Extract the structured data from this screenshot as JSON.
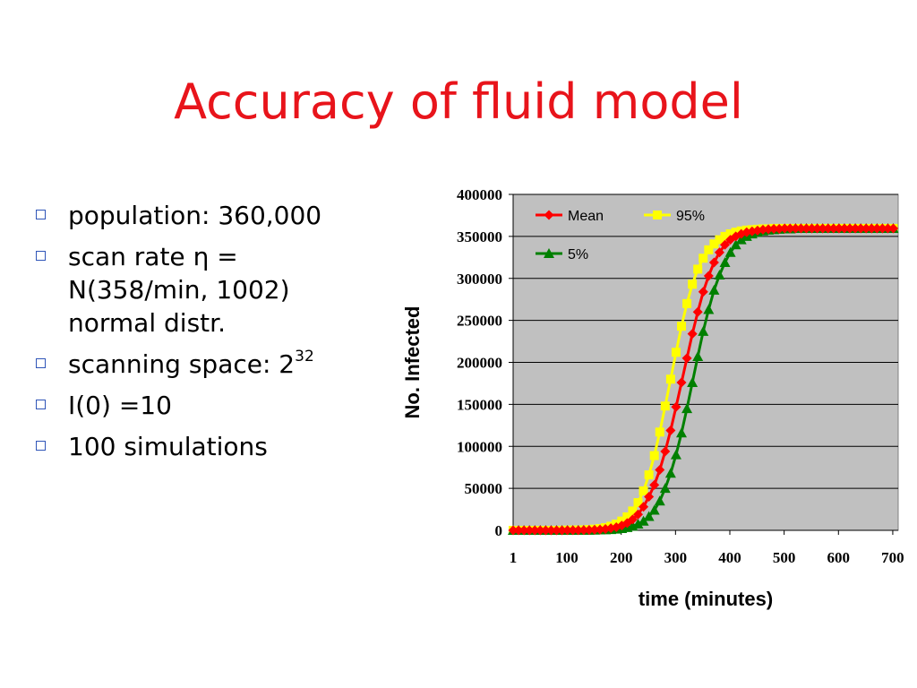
{
  "slide": {
    "title": "Accuracy of fluid model",
    "bullets": [
      {
        "text": "population: 360,000",
        "sup": ""
      },
      {
        "text": "scan rate η = N(358/min, 1002) normal distr.",
        "sup": ""
      },
      {
        "text": "scanning space: 2",
        "sup": "32"
      },
      {
        "text": "I(0) =10",
        "sup": ""
      },
      {
        "text": "100 simulations",
        "sup": ""
      }
    ]
  },
  "chart_data": {
    "type": "line",
    "xlabel": "time (minutes)",
    "ylabel": "No. Infected",
    "xlim": [
      1,
      710
    ],
    "ylim": [
      0,
      400000
    ],
    "x_ticks": [
      1,
      100,
      200,
      300,
      400,
      500,
      600,
      700
    ],
    "x_tick_labels": [
      "1",
      "100",
      "200",
      "300",
      "400",
      "500",
      "600",
      "700"
    ],
    "y_ticks": [
      0,
      50000,
      100000,
      150000,
      200000,
      250000,
      300000,
      350000,
      400000
    ],
    "y_tick_labels": [
      "0",
      "50000",
      "100000",
      "150000",
      "200000",
      "250000",
      "300000",
      "350000",
      "400000"
    ],
    "grid": true,
    "legend_position": "top-left inside",
    "colors": {
      "plot_background": "#c0c0c0",
      "gridline": "#000000"
    },
    "series": [
      {
        "name": "Mean",
        "color": "#ff0000",
        "marker": "diamond",
        "x": [
          1,
          11,
          21,
          31,
          41,
          51,
          61,
          71,
          81,
          91,
          101,
          111,
          121,
          131,
          141,
          151,
          161,
          171,
          181,
          191,
          201,
          211,
          221,
          231,
          241,
          251,
          261,
          271,
          281,
          291,
          301,
          311,
          321,
          331,
          341,
          351,
          361,
          371,
          381,
          391,
          401,
          411,
          421,
          431,
          441,
          451,
          461,
          471,
          481,
          491,
          501,
          511,
          521,
          531,
          541,
          551,
          561,
          571,
          581,
          591,
          601,
          611,
          621,
          631,
          641,
          651,
          661,
          671,
          681,
          691,
          701
        ],
        "y": [
          0,
          0,
          0,
          0,
          0,
          0,
          0,
          0,
          0,
          0,
          100,
          100,
          200,
          300,
          400,
          700,
          1000,
          1600,
          2500,
          3800,
          5700,
          8700,
          13000,
          19000,
          28000,
          40000,
          54000,
          72000,
          94000,
          119000,
          147000,
          176000,
          205000,
          234000,
          260000,
          284000,
          303000,
          319000,
          331000,
          340000,
          346000,
          350000,
          353000,
          355000,
          356000,
          357000,
          358000,
          358500,
          359000,
          359000,
          359500,
          359500,
          359500,
          359500,
          359500,
          359500,
          359500,
          359500,
          359500,
          359500,
          359500,
          359500,
          359500,
          359500,
          359500,
          359500,
          359500,
          359500,
          359500,
          359500,
          359500
        ]
      },
      {
        "name": "95%",
        "color": "#ffff00",
        "marker": "square",
        "x": [
          1,
          11,
          21,
          31,
          41,
          51,
          61,
          71,
          81,
          91,
          101,
          111,
          121,
          131,
          141,
          151,
          161,
          171,
          181,
          191,
          201,
          211,
          221,
          231,
          241,
          251,
          261,
          271,
          281,
          291,
          301,
          311,
          321,
          331,
          341,
          351,
          361,
          371,
          381,
          391,
          401,
          411,
          421,
          431,
          441,
          451,
          461,
          471,
          481,
          491,
          501,
          511,
          521,
          531,
          541,
          551,
          561,
          571,
          581,
          591,
          601,
          611,
          621,
          631,
          641,
          651,
          661,
          671,
          681,
          691,
          701
        ],
        "y": [
          0,
          0,
          0,
          0,
          0,
          0,
          0,
          0,
          0,
          100,
          200,
          300,
          400,
          600,
          900,
          1400,
          2100,
          3200,
          4900,
          7500,
          11000,
          16000,
          23000,
          33000,
          47000,
          66000,
          89000,
          117000,
          148000,
          180000,
          212000,
          243000,
          270000,
          293000,
          311000,
          324000,
          334000,
          341000,
          346000,
          350000,
          353000,
          355000,
          356500,
          357500,
          358000,
          358500,
          359000,
          359000,
          359500,
          359500,
          359500,
          359500,
          359500,
          359500,
          359500,
          359500,
          359500,
          359500,
          359500,
          359500,
          359500,
          359500,
          359500,
          359500,
          359500,
          359500,
          359500,
          359500,
          359500,
          359500,
          359500
        ]
      },
      {
        "name": "5%",
        "color": "#008000",
        "marker": "triangle",
        "x": [
          1,
          11,
          21,
          31,
          41,
          51,
          61,
          71,
          81,
          91,
          101,
          111,
          121,
          131,
          141,
          151,
          161,
          171,
          181,
          191,
          201,
          211,
          221,
          231,
          241,
          251,
          261,
          271,
          281,
          291,
          301,
          311,
          321,
          331,
          341,
          351,
          361,
          371,
          381,
          391,
          401,
          411,
          421,
          431,
          441,
          451,
          461,
          471,
          481,
          491,
          501,
          511,
          521,
          531,
          541,
          551,
          561,
          571,
          581,
          591,
          601,
          611,
          621,
          631,
          641,
          651,
          661,
          671,
          681,
          691,
          701
        ],
        "y": [
          0,
          0,
          0,
          0,
          0,
          0,
          0,
          0,
          0,
          0,
          0,
          0,
          100,
          100,
          200,
          300,
          500,
          700,
          1000,
          1500,
          2200,
          3300,
          5000,
          7500,
          11000,
          16500,
          24000,
          35000,
          50000,
          68000,
          90000,
          116000,
          145000,
          176000,
          207000,
          237000,
          263000,
          286000,
          304000,
          319000,
          331000,
          340000,
          346000,
          350000,
          353000,
          355000,
          356500,
          357500,
          358000,
          358500,
          359000,
          359000,
          359500,
          359500,
          359500,
          359500,
          359500,
          359500,
          359500,
          359500,
          359500,
          359500,
          359500,
          359500,
          359500,
          359500,
          359500,
          359500,
          359500,
          359500,
          359500
        ]
      }
    ]
  }
}
